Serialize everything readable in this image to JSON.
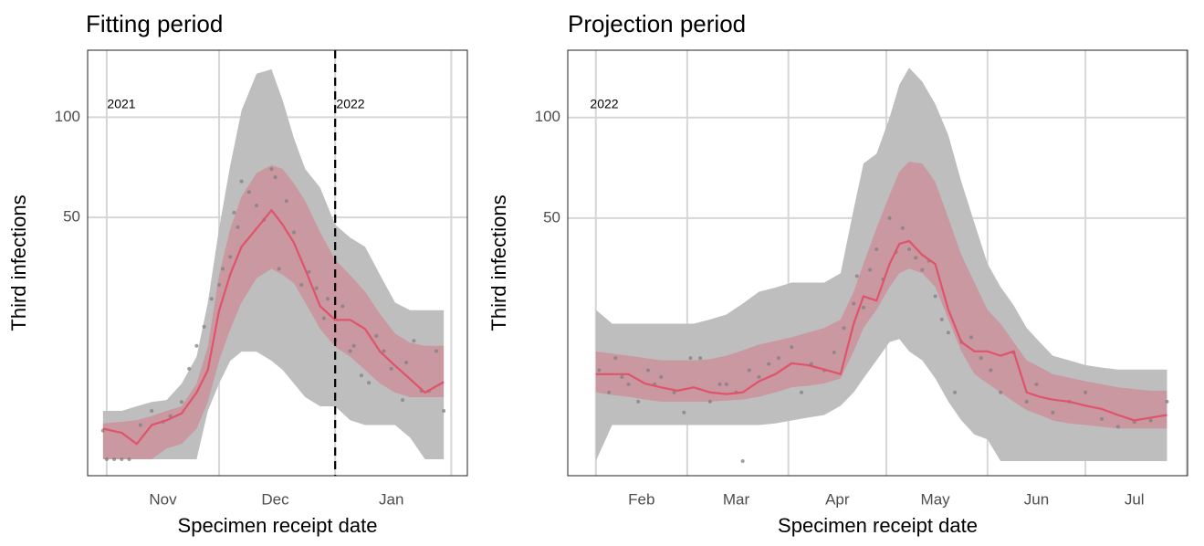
{
  "chart_data": [
    {
      "type": "line",
      "title": "Fitting period",
      "xlabel": "Specimen receipt date",
      "ylabel": "Third infections",
      "yscale": "sqrt",
      "ylim": [
        0,
        143
      ],
      "yticks": [
        50,
        100
      ],
      "xlim": [
        -5.1,
        96.3
      ],
      "xticks": [
        {
          "value": 15,
          "label": "Nov"
        },
        {
          "value": 45,
          "label": "Dec"
        },
        {
          "value": 76,
          "label": "Jan"
        }
      ],
      "xgrid": [
        0,
        30,
        61,
        92
      ],
      "grid": true,
      "vline": 61,
      "annotations": [
        "2021",
        "2022"
      ],
      "x": [
        -1,
        4,
        8,
        12,
        16,
        20,
        24,
        27,
        30,
        33,
        36,
        40,
        44,
        47,
        50,
        53,
        57,
        61,
        65,
        69,
        73,
        77,
        81,
        85,
        90
      ],
      "bands": [
        {
          "color": "#bebebe",
          "opacity": 1,
          "upper": [
            2,
            2,
            2.4,
            2.8,
            3,
            4.9,
            9,
            21,
            45.5,
            74,
            104,
            127,
            130,
            110,
            88,
            72,
            63,
            47,
            42,
            38.6,
            29,
            21,
            19,
            19,
            19
          ],
          "lower": [
            0,
            0,
            0,
            0,
            0,
            0,
            0,
            2,
            4.9,
            8.3,
            9.9,
            9.9,
            8.3,
            6.8,
            4.9,
            3.3,
            2.4,
            2.4,
            1.3,
            1,
            1,
            1,
            0.4,
            0,
            0
          ]
        },
        {
          "color": "#e0536b",
          "opacity": 0.35,
          "upper": [
            1.1,
            1.2,
            1.3,
            1.6,
            2,
            2.4,
            4.9,
            10.8,
            29,
            45.5,
            59,
            70,
            74,
            72,
            65,
            57,
            44,
            34,
            29,
            24,
            18,
            13.5,
            11.6,
            11,
            11
          ],
          "lower": [
            0,
            0,
            0,
            0,
            0.1,
            0.2,
            0.8,
            2.8,
            8.3,
            14.5,
            21,
            28,
            31,
            29,
            26.5,
            21,
            14.5,
            10.8,
            9,
            6.8,
            4.9,
            3.8,
            3.3,
            3.3,
            3.3
          ]
        }
      ],
      "series": [
        {
          "color": "#df536b",
          "values": [
            0.8,
            0.6,
            0.2,
            1,
            1.3,
            1.8,
            3.8,
            6.8,
            18.9,
            29.3,
            38.6,
            45.5,
            53,
            47,
            40,
            30.8,
            20,
            16.6,
            16.6,
            14.5,
            9.9,
            7.5,
            5.5,
            3.8,
            5.1
          ]
        }
      ],
      "points": {
        "color": "#7f7f7f",
        "x": [
          -1,
          0,
          2,
          4,
          6,
          9,
          12,
          15,
          17,
          20,
          22,
          24,
          26,
          28,
          30,
          31,
          33,
          34,
          35,
          36,
          38,
          40,
          42,
          44,
          45,
          46,
          48,
          50,
          52,
          54,
          56,
          58,
          59,
          61,
          63,
          65,
          66,
          68,
          70,
          72,
          74,
          76,
          79,
          80,
          82,
          84,
          86,
          88,
          90
        ],
        "values": [
          0.7,
          0,
          0,
          0,
          0,
          1,
          2,
          1.2,
          1.6,
          2.8,
          7,
          11,
          15,
          22,
          26,
          31,
          35,
          52,
          46,
          66,
          61,
          55,
          49,
          72,
          68,
          31,
          57,
          44,
          26,
          30,
          25,
          17,
          22,
          12,
          20,
          10,
          11,
          6,
          5,
          13,
          10,
          7,
          3,
          8,
          12,
          4,
          4,
          10,
          2
        ]
      }
    },
    {
      "type": "line",
      "title": "Projection period",
      "xlabel": "Specimen receipt date",
      "ylabel": "Third infections",
      "yscale": "sqrt",
      "ylim": [
        0,
        143
      ],
      "yticks": [
        50,
        100
      ],
      "xlim": [
        -8.6,
        181.3
      ],
      "xticks": [
        {
          "value": 14,
          "label": "Feb"
        },
        {
          "value": 43,
          "label": "Mar"
        },
        {
          "value": 74,
          "label": "Apr"
        },
        {
          "value": 104,
          "label": "May"
        },
        {
          "value": 135,
          "label": "Jun"
        },
        {
          "value": 165,
          "label": "Jul"
        }
      ],
      "xgrid": [
        0,
        28,
        59,
        89,
        120,
        150,
        181
      ],
      "grid": true,
      "annotations": [
        "2022"
      ],
      "x": [
        0,
        5,
        10,
        15,
        20,
        25,
        30,
        35,
        40,
        45,
        50,
        55,
        60,
        65,
        70,
        75,
        79,
        82,
        86,
        90,
        93,
        96,
        100,
        104,
        108,
        112,
        116,
        120,
        124,
        128,
        132,
        136,
        140,
        145,
        150,
        155,
        160,
        165,
        170,
        175
      ],
      "bands": [
        {
          "color": "#bebebe",
          "opacity": 1,
          "upper": [
            19.4,
            16,
            16,
            16,
            16,
            16,
            16,
            17,
            18.2,
            21,
            24.3,
            25.5,
            27,
            27,
            27,
            29.9,
            53.8,
            75,
            80,
            100,
            120,
            131,
            122,
            108,
            90,
            66,
            48,
            33,
            25.7,
            20.6,
            15,
            12,
            9.4,
            8.6,
            7.8,
            7.4,
            7.1,
            7.1,
            7.1,
            7.1
          ],
          "lower": [
            0,
            1.1,
            1.1,
            1.1,
            1.1,
            1.1,
            1.1,
            1.1,
            1.1,
            1.1,
            1.1,
            1.2,
            1.4,
            1.6,
            1.8,
            2.6,
            4,
            5.8,
            8.6,
            12,
            12.6,
            10.2,
            8.6,
            5.8,
            3,
            1.4,
            0.6,
            0.4,
            0,
            0,
            0,
            0,
            0,
            0,
            0,
            0,
            0,
            0,
            0,
            0
          ]
        },
        {
          "color": "#e0536b",
          "opacity": 0.35,
          "upper": [
            10.2,
            9.8,
            9.4,
            9,
            8.6,
            8.6,
            8.6,
            8.8,
            9.4,
            10.4,
            11.5,
            12.2,
            13,
            14,
            15,
            17,
            24.3,
            33,
            46,
            60,
            71,
            76,
            75,
            66,
            50,
            36,
            27,
            19.4,
            16,
            12,
            8.6,
            7.5,
            6.4,
            5.9,
            5.4,
            5,
            4.6,
            4.4,
            4.2,
            4.2
          ],
          "lower": [
            4,
            3.7,
            3.5,
            3.2,
            3,
            3,
            3,
            3,
            3.1,
            3.2,
            3.5,
            4,
            4.6,
            4.8,
            5.1,
            5.8,
            10.2,
            15,
            19.4,
            25.7,
            29.9,
            31.4,
            29.9,
            25.7,
            17,
            10.2,
            6.4,
            5.1,
            4,
            3,
            2.2,
            1.8,
            1.4,
            1.2,
            1.1,
            1,
            0.9,
            0.9,
            0.9,
            0.9
          ]
        }
      ],
      "series": [
        {
          "color": "#df536b",
          "values": [
            6.4,
            6.4,
            6.4,
            5.1,
            4.6,
            4.2,
            4.6,
            4,
            3.8,
            4,
            5.4,
            6.4,
            8.1,
            7.8,
            7.1,
            6.4,
            16,
            23,
            21.8,
            32.9,
            40,
            41,
            36,
            32.9,
            19.4,
            12,
            10.2,
            10.2,
            9.4,
            10.2,
            4,
            3.5,
            3.2,
            3,
            2.6,
            2.3,
            1.8,
            1.4,
            1.6,
            1.8
          ]
        }
      ],
      "points": {
        "color": "#7f7f7f",
        "x": [
          1,
          4,
          6,
          8,
          10,
          13,
          16,
          18,
          20,
          24,
          27,
          29,
          32,
          35,
          38,
          40,
          43,
          45,
          47,
          50,
          53,
          56,
          60,
          63,
          66,
          70,
          73,
          76,
          79,
          80,
          82,
          84,
          86,
          88,
          90,
          92,
          94,
          96,
          98,
          100,
          102,
          104,
          106,
          108,
          110,
          112,
          115,
          118,
          121,
          124,
          128,
          132,
          135,
          140,
          145,
          150,
          155,
          160,
          165,
          170,
          175
        ],
        "values": [
          7,
          4,
          9,
          6,
          5,
          3,
          7,
          5,
          6,
          4,
          2,
          9,
          9,
          3,
          5,
          5,
          4,
          0,
          7,
          6,
          8,
          9,
          11,
          4,
          8,
          7,
          10,
          15,
          21,
          29,
          20,
          31,
          38,
          28,
          50,
          37,
          46,
          38,
          35,
          31,
          34,
          23,
          17,
          14,
          4,
          12,
          13,
          9,
          7,
          4,
          10,
          3,
          5,
          2,
          3,
          4,
          1.5,
          1,
          1.3,
          1.4,
          3
        ]
      }
    }
  ]
}
